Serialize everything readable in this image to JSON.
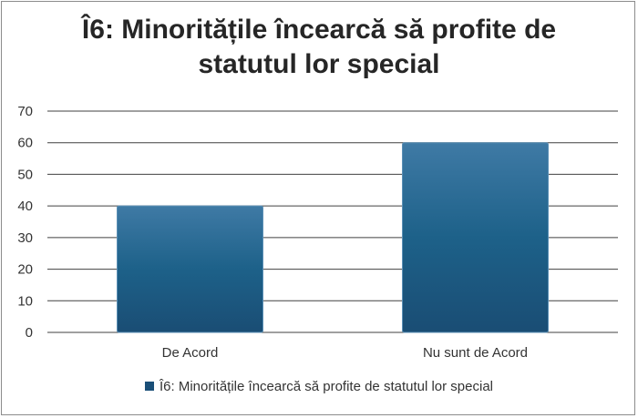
{
  "chart_data": {
    "type": "bar",
    "title": "Î6: Minoritățile încearcă să profite de statutul lor special",
    "title_lines": [
      "Î6: Minoritățile încearcă să profite de",
      "statutul lor special"
    ],
    "categories": [
      "De Acord",
      "Nu sunt de Acord"
    ],
    "series": [
      {
        "name": "Î6: Minoritățile încearcă să profite de statutul lor special",
        "values": [
          40,
          60
        ]
      }
    ],
    "ylim": [
      0,
      70
    ],
    "yticks": [
      "0",
      "10",
      "20",
      "30",
      "40",
      "50",
      "60",
      "70"
    ],
    "grid": true,
    "legend_position": "bottom",
    "colors": {
      "bar_top": "#3d78a3",
      "bar_bottom": "#1a4f78",
      "grid": "#404040",
      "text": "#333333"
    }
  }
}
